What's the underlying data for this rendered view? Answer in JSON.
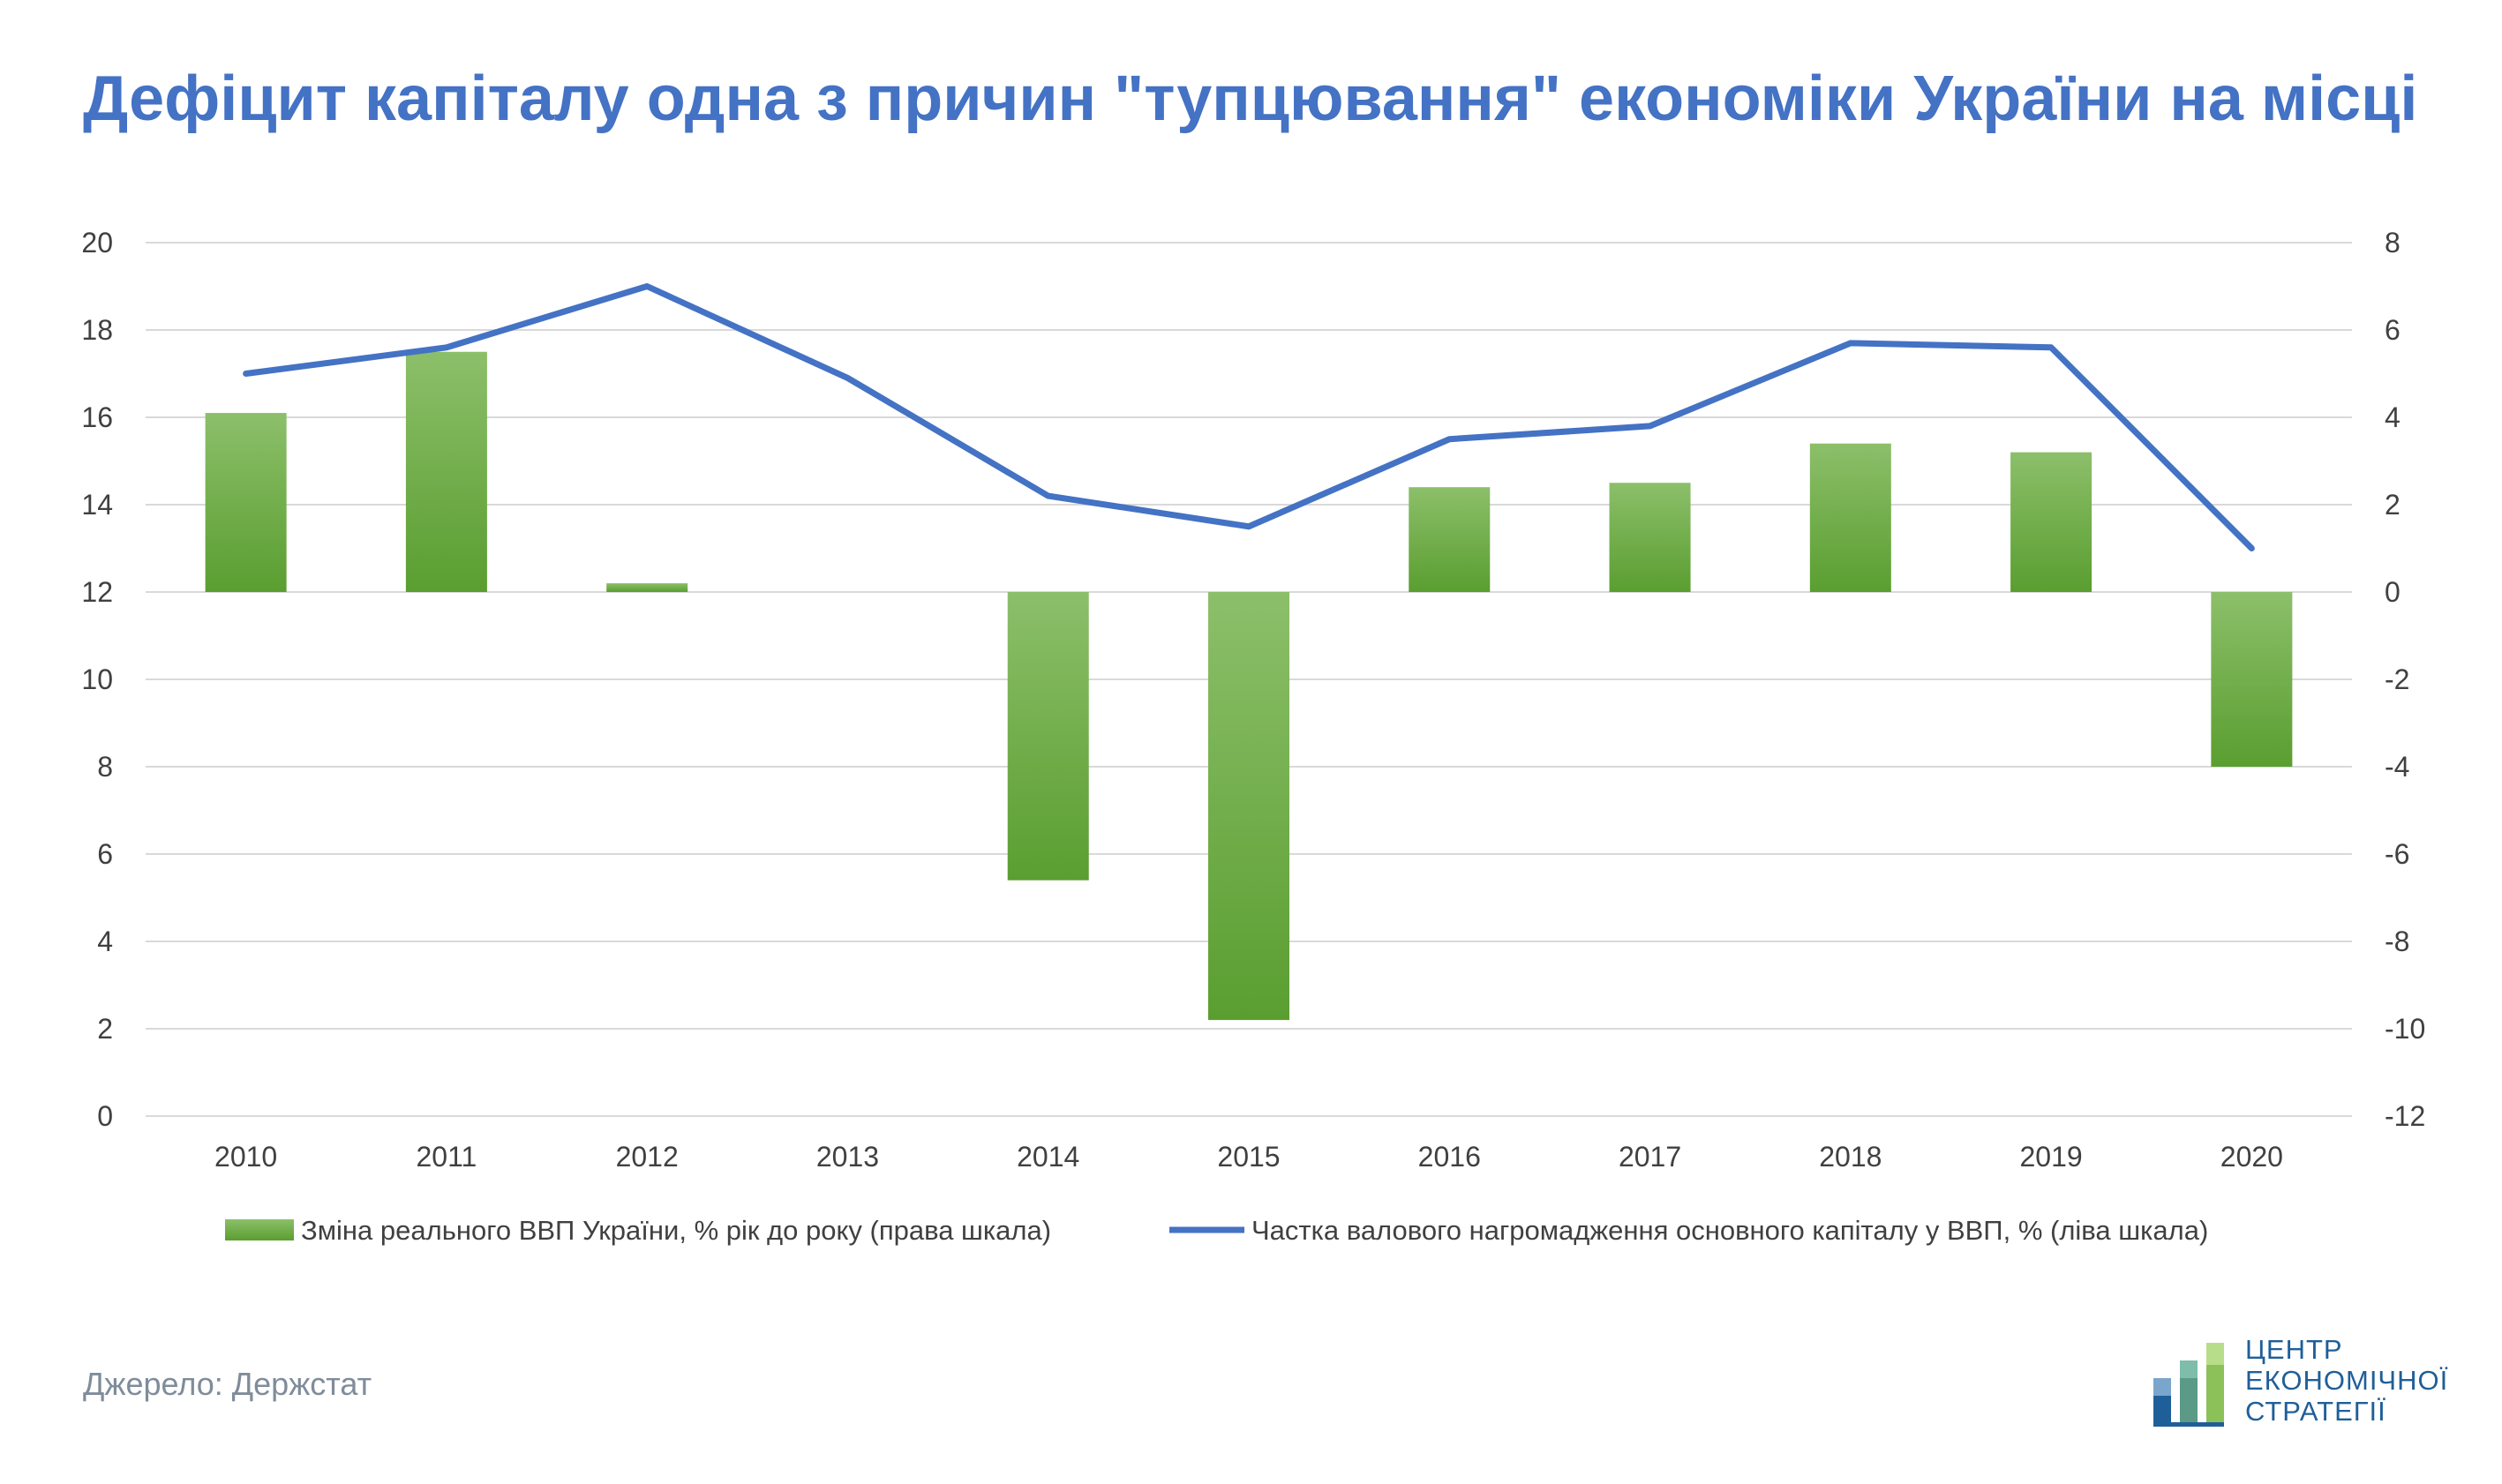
{
  "title": "Дефіцит капіталу одна з причин \"тупцювання\" економіки України на місці",
  "source": "Джерело: Держстат",
  "logo": {
    "line1": "ЦЕНТР",
    "line2": "ЕКОНОМІЧНОЇ",
    "line3": "СТРАТЕГІЇ"
  },
  "colors": {
    "title": "#4472c4",
    "line": "#4472c4",
    "bar_top": "#8cbf6a",
    "bar_bottom": "#5a9e30",
    "grid": "#d9d9d9",
    "text": "#404040",
    "source": "#7f8c9a"
  },
  "chart_data": {
    "type": "bar+line",
    "categories": [
      "2010",
      "2011",
      "2012",
      "2013",
      "2014",
      "2015",
      "2016",
      "2017",
      "2018",
      "2019",
      "2020"
    ],
    "series": [
      {
        "name": "Зміна реального ВВП України, % рік до року (права шкала)",
        "type": "bar",
        "axis": "right",
        "values": [
          4.1,
          5.5,
          0.2,
          0.0,
          -6.6,
          -9.8,
          2.4,
          2.5,
          3.4,
          3.2,
          -4.0
        ]
      },
      {
        "name": "Частка валового нагромадження основного капіталу у ВВП, % (ліва шкала)",
        "type": "line",
        "axis": "left",
        "values": [
          17.0,
          17.6,
          19.0,
          16.9,
          14.2,
          13.5,
          15.5,
          15.8,
          17.7,
          17.6,
          13.0
        ]
      }
    ],
    "left_axis": {
      "min": 0,
      "max": 20,
      "step": 2,
      "ticks": [
        "0",
        "2",
        "4",
        "6",
        "8",
        "10",
        "12",
        "14",
        "16",
        "18",
        "20"
      ]
    },
    "right_axis": {
      "min": -12,
      "max": 8,
      "step": 2,
      "ticks": [
        "-12",
        "-10",
        "-8",
        "-6",
        "-4",
        "-2",
        "0",
        "2",
        "4",
        "6",
        "8"
      ]
    },
    "grid": true,
    "legend_position": "bottom"
  }
}
